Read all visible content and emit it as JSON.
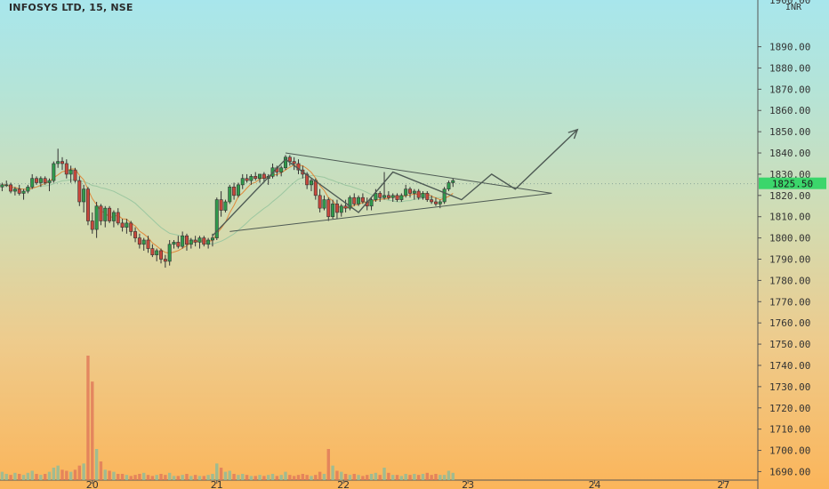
{
  "header": {
    "title": "INFOSYS LTD, 15, NSE"
  },
  "axis": {
    "currency": "INR",
    "top_partial_label": "1900.00",
    "last_price_label": "1825.50"
  },
  "colors": {
    "bull": "#2f9a4c",
    "bear": "#c8483c",
    "wick": "#333333",
    "ma_fast": "#e08a3c",
    "ma_slow": "#9cc7a0",
    "trendline": "#4e5a54",
    "last_price": "#3bd66b",
    "vol_bull": "#8fbc9a",
    "vol_bear": "#e07b5a"
  },
  "chart_data": {
    "type": "candlestick",
    "title": "INFOSYS LTD, 15, NSE",
    "yaxis": {
      "unit": "INR",
      "range": [
        1686,
        1912
      ],
      "ticks": [
        1690,
        1700,
        1710,
        1720,
        1730,
        1740,
        1750,
        1760,
        1770,
        1780,
        1790,
        1800,
        1810,
        1820,
        1830,
        1840,
        1850,
        1860,
        1870,
        1880,
        1890
      ],
      "tick_labels": [
        "1690.00",
        "1700.00",
        "1710.00",
        "1720.00",
        "1730.00",
        "1740.00",
        "1750.00",
        "1760.00",
        "1770.00",
        "1780.00",
        "1790.00",
        "1800.00",
        "1810.00",
        "1820.00",
        "1830.00",
        "1840.00",
        "1850.00",
        "1860.00",
        "1870.00",
        "1880.00",
        "1890.00"
      ]
    },
    "xaxis": {
      "range": [
        -0.5,
        176
      ],
      "ticks": [
        {
          "x": 21,
          "label": "20"
        },
        {
          "x": 50,
          "label": "21"
        },
        {
          "x": 79.5,
          "label": "22"
        },
        {
          "x": 108.5,
          "label": "23"
        },
        {
          "x": 138,
          "label": "24"
        },
        {
          "x": 168,
          "label": "27"
        }
      ]
    },
    "last_price": 1825.5,
    "candles": [
      [
        1824,
        1826,
        1822,
        1825
      ],
      [
        1825,
        1827,
        1824,
        1825
      ],
      [
        1825,
        1826,
        1821,
        1822
      ],
      [
        1822,
        1824,
        1820,
        1823
      ],
      [
        1823,
        1825,
        1820,
        1821
      ],
      [
        1821,
        1823,
        1818,
        1822
      ],
      [
        1822,
        1825,
        1821,
        1824
      ],
      [
        1824,
        1830,
        1823,
        1828
      ],
      [
        1828,
        1829,
        1825,
        1826
      ],
      [
        1826,
        1829,
        1824,
        1828
      ],
      [
        1828,
        1829,
        1825,
        1826
      ],
      [
        1826,
        1828,
        1822,
        1827
      ],
      [
        1827,
        1836,
        1826,
        1835
      ],
      [
        1835,
        1842,
        1833,
        1836
      ],
      [
        1836,
        1838,
        1832,
        1835
      ],
      [
        1835,
        1837,
        1828,
        1830
      ],
      [
        1830,
        1834,
        1826,
        1832
      ],
      [
        1832,
        1833,
        1826,
        1827
      ],
      [
        1827,
        1829,
        1815,
        1817
      ],
      [
        1817,
        1825,
        1812,
        1823
      ],
      [
        1823,
        1824,
        1806,
        1808
      ],
      [
        1808,
        1812,
        1802,
        1804
      ],
      [
        1804,
        1817,
        1800,
        1815
      ],
      [
        1815,
        1816,
        1806,
        1808
      ],
      [
        1808,
        1815,
        1805,
        1814
      ],
      [
        1814,
        1815,
        1807,
        1808
      ],
      [
        1808,
        1813,
        1805,
        1812
      ],
      [
        1812,
        1814,
        1806,
        1807
      ],
      [
        1807,
        1809,
        1803,
        1805
      ],
      [
        1805,
        1809,
        1802,
        1807
      ],
      [
        1807,
        1808,
        1801,
        1803
      ],
      [
        1803,
        1805,
        1798,
        1800
      ],
      [
        1800,
        1802,
        1795,
        1797
      ],
      [
        1797,
        1800,
        1794,
        1799
      ],
      [
        1799,
        1801,
        1793,
        1795
      ],
      [
        1795,
        1797,
        1791,
        1792
      ],
      [
        1792,
        1795,
        1789,
        1794
      ],
      [
        1794,
        1795,
        1788,
        1790
      ],
      [
        1790,
        1792,
        1786,
        1789
      ],
      [
        1789,
        1799,
        1787,
        1797
      ],
      [
        1797,
        1799,
        1795,
        1798
      ],
      [
        1798,
        1801,
        1795,
        1796
      ],
      [
        1796,
        1803,
        1795,
        1801
      ],
      [
        1801,
        1802,
        1794,
        1797
      ],
      [
        1797,
        1800,
        1795,
        1799
      ],
      [
        1799,
        1801,
        1796,
        1798
      ],
      [
        1798,
        1801,
        1795,
        1800
      ],
      [
        1800,
        1801,
        1796,
        1797
      ],
      [
        1797,
        1800,
        1795,
        1799
      ],
      [
        1799,
        1802,
        1796,
        1800
      ],
      [
        1800,
        1819,
        1799,
        1818
      ],
      [
        1818,
        1822,
        1810,
        1813
      ],
      [
        1813,
        1818,
        1812,
        1817
      ],
      [
        1817,
        1825,
        1816,
        1824
      ],
      [
        1824,
        1826,
        1818,
        1820
      ],
      [
        1820,
        1826,
        1819,
        1825
      ],
      [
        1825,
        1830,
        1823,
        1828
      ],
      [
        1828,
        1830,
        1826,
        1827
      ],
      [
        1827,
        1830,
        1825,
        1829
      ],
      [
        1829,
        1831,
        1827,
        1828
      ],
      [
        1828,
        1830,
        1826,
        1830
      ],
      [
        1830,
        1831,
        1826,
        1828
      ],
      [
        1828,
        1830,
        1825,
        1829
      ],
      [
        1829,
        1835,
        1828,
        1833
      ],
      [
        1833,
        1834,
        1829,
        1831
      ],
      [
        1831,
        1834,
        1829,
        1833
      ],
      [
        1833,
        1839,
        1832,
        1838
      ],
      [
        1838,
        1839,
        1834,
        1836
      ],
      [
        1836,
        1838,
        1832,
        1835
      ],
      [
        1835,
        1837,
        1830,
        1832
      ],
      [
        1832,
        1834,
        1828,
        1830
      ],
      [
        1830,
        1831,
        1823,
        1825
      ],
      [
        1825,
        1828,
        1822,
        1827
      ],
      [
        1827,
        1828,
        1818,
        1820
      ],
      [
        1820,
        1823,
        1812,
        1814
      ],
      [
        1814,
        1820,
        1813,
        1818
      ],
      [
        1818,
        1819,
        1808,
        1810
      ],
      [
        1810,
        1818,
        1809,
        1816
      ],
      [
        1816,
        1818,
        1809,
        1812
      ],
      [
        1812,
        1816,
        1810,
        1815
      ],
      [
        1815,
        1818,
        1812,
        1814
      ],
      [
        1814,
        1820,
        1813,
        1819
      ],
      [
        1819,
        1821,
        1815,
        1816
      ],
      [
        1816,
        1820,
        1815,
        1819
      ],
      [
        1819,
        1821,
        1816,
        1817
      ],
      [
        1817,
        1819,
        1813,
        1815
      ],
      [
        1815,
        1819,
        1813,
        1818
      ],
      [
        1818,
        1823,
        1817,
        1821
      ],
      [
        1821,
        1822,
        1817,
        1819
      ],
      [
        1819,
        1831,
        1818,
        1820
      ],
      [
        1820,
        1822,
        1818,
        1819
      ],
      [
        1819,
        1821,
        1817,
        1820
      ],
      [
        1820,
        1821,
        1817,
        1818
      ],
      [
        1818,
        1821,
        1817,
        1820
      ],
      [
        1820,
        1825,
        1819,
        1823
      ],
      [
        1823,
        1824,
        1819,
        1821
      ],
      [
        1821,
        1823,
        1818,
        1822
      ],
      [
        1822,
        1823,
        1818,
        1819
      ],
      [
        1819,
        1822,
        1818,
        1821
      ],
      [
        1821,
        1822,
        1817,
        1818
      ],
      [
        1818,
        1820,
        1816,
        1817
      ],
      [
        1817,
        1819,
        1815,
        1816
      ],
      [
        1816,
        1818,
        1814,
        1817
      ],
      [
        1817,
        1824,
        1816,
        1823
      ],
      [
        1823,
        1827,
        1822,
        1826
      ],
      [
        1826,
        1828,
        1824,
        1827
      ]
    ],
    "volume": {
      "range": [
        0,
        120
      ],
      "values": [
        8,
        6,
        5,
        7,
        6,
        5,
        7,
        9,
        6,
        5,
        6,
        8,
        12,
        14,
        10,
        9,
        8,
        10,
        14,
        16,
        120,
        95,
        30,
        18,
        10,
        9,
        8,
        6,
        6,
        5,
        4,
        5,
        6,
        7,
        5,
        4,
        5,
        6,
        5,
        7,
        4,
        4,
        5,
        6,
        4,
        5,
        4,
        4,
        5,
        6,
        16,
        12,
        8,
        9,
        6,
        5,
        6,
        5,
        4,
        4,
        5,
        4,
        5,
        6,
        4,
        5,
        8,
        5,
        4,
        5,
        6,
        5,
        4,
        5,
        8,
        6,
        30,
        14,
        9,
        8,
        6,
        5,
        6,
        5,
        4,
        5,
        6,
        7,
        5,
        12,
        7,
        5,
        5,
        4,
        6,
        5,
        6,
        5,
        6,
        7,
        5,
        6,
        5,
        5,
        9,
        7
      ]
    },
    "overlays": {
      "triangle_upper": [
        [
          66,
          1840
        ],
        [
          128,
          1821
        ]
      ],
      "triangle_lower": [
        [
          53,
          1803
        ],
        [
          128,
          1821
        ]
      ],
      "projection": [
        [
          49,
          1801
        ],
        [
          66,
          1837
        ],
        [
          83,
          1812
        ],
        [
          91,
          1831
        ],
        [
          107,
          1818
        ],
        [
          114,
          1830
        ],
        [
          119.5,
          1823
        ],
        [
          134,
          1851
        ]
      ]
    }
  }
}
